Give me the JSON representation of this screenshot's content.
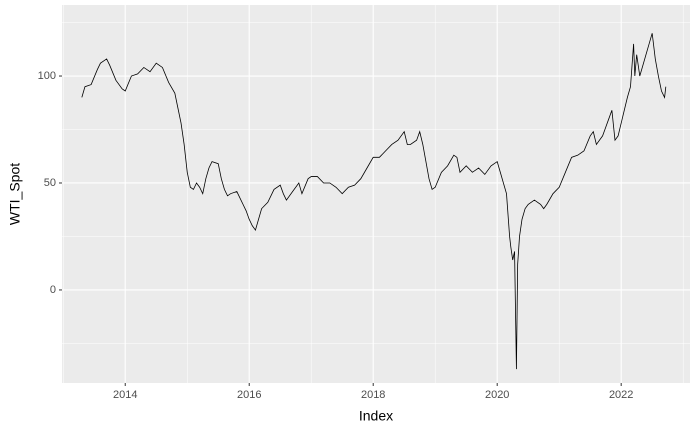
{
  "chart_data": {
    "type": "line",
    "x_label": "Index",
    "y_label": "WTI_Spot",
    "x": [
      2013.3,
      2013.35,
      2013.45,
      2013.55,
      2013.6,
      2013.7,
      2013.75,
      2013.85,
      2013.95,
      2014.0,
      2014.1,
      2014.2,
      2014.3,
      2014.4,
      2014.5,
      2014.6,
      2014.7,
      2014.8,
      2014.85,
      2014.9,
      2014.95,
      2015.0,
      2015.05,
      2015.1,
      2015.15,
      2015.2,
      2015.25,
      2015.3,
      2015.35,
      2015.4,
      2015.5,
      2015.55,
      2015.6,
      2015.65,
      2015.7,
      2015.8,
      2015.85,
      2015.9,
      2015.95,
      2016.0,
      2016.05,
      2016.1,
      2016.15,
      2016.2,
      2016.3,
      2016.4,
      2016.5,
      2016.55,
      2016.6,
      2016.7,
      2016.8,
      2016.85,
      2016.95,
      2017.0,
      2017.1,
      2017.2,
      2017.3,
      2017.4,
      2017.5,
      2017.6,
      2017.7,
      2017.8,
      2017.9,
      2018.0,
      2018.1,
      2018.2,
      2018.3,
      2018.4,
      2018.5,
      2018.55,
      2018.6,
      2018.7,
      2018.75,
      2018.8,
      2018.85,
      2018.9,
      2018.95,
      2019.0,
      2019.1,
      2019.2,
      2019.3,
      2019.35,
      2019.4,
      2019.5,
      2019.6,
      2019.7,
      2019.8,
      2019.9,
      2020.0,
      2020.05,
      2020.1,
      2020.15,
      2020.2,
      2020.22,
      2020.25,
      2020.28,
      2020.31,
      2020.33,
      2020.36,
      2020.4,
      2020.45,
      2020.5,
      2020.6,
      2020.7,
      2020.75,
      2020.8,
      2020.9,
      2021.0,
      2021.1,
      2021.2,
      2021.3,
      2021.4,
      2021.5,
      2021.55,
      2021.6,
      2021.7,
      2021.8,
      2021.85,
      2021.9,
      2021.95,
      2022.0,
      2022.1,
      2022.15,
      2022.2,
      2022.22,
      2022.25,
      2022.3,
      2022.35,
      2022.4,
      2022.45,
      2022.5,
      2022.55,
      2022.6,
      2022.65,
      2022.7,
      2022.72
    ],
    "series": [
      {
        "name": "WTI_Spot",
        "color": "#000000",
        "values": [
          90,
          95,
          96,
          103,
          106,
          108,
          105,
          98,
          94,
          93,
          100,
          101,
          104,
          102,
          106,
          104,
          97,
          92,
          85,
          78,
          68,
          55,
          48,
          47,
          50,
          48,
          45,
          52,
          57,
          60,
          59,
          52,
          47,
          44,
          45,
          46,
          43,
          40,
          37,
          33,
          30,
          28,
          33,
          38,
          41,
          47,
          49,
          45,
          42,
          46,
          50,
          45,
          52,
          53,
          53,
          50,
          50,
          48,
          45,
          48,
          49,
          52,
          57,
          62,
          62,
          65,
          68,
          70,
          74,
          68,
          68,
          70,
          74,
          68,
          60,
          52,
          47,
          48,
          55,
          58,
          63,
          62,
          55,
          58,
          55,
          57,
          54,
          58,
          60,
          55,
          50,
          45,
          25,
          20,
          14,
          18,
          -37,
          12,
          25,
          33,
          38,
          40,
          42,
          40,
          38,
          40,
          45,
          48,
          55,
          62,
          63,
          65,
          72,
          74,
          68,
          72,
          80,
          84,
          70,
          72,
          78,
          90,
          95,
          115,
          100,
          110,
          100,
          105,
          110,
          115,
          120,
          108,
          100,
          93,
          90,
          95
        ]
      }
    ],
    "xlim": [
      2012.98,
      2023.11
    ],
    "xticks": [
      2014,
      2016,
      2018,
      2020,
      2022
    ],
    "x_minor_ticks": [
      2013,
      2015,
      2017,
      2019,
      2021,
      2023
    ],
    "ylim": [
      -43.5,
      133.2
    ],
    "yticks": [
      0,
      50,
      100
    ],
    "y_minor_ticks": [
      -25,
      25,
      75,
      125
    ],
    "grid": true
  }
}
